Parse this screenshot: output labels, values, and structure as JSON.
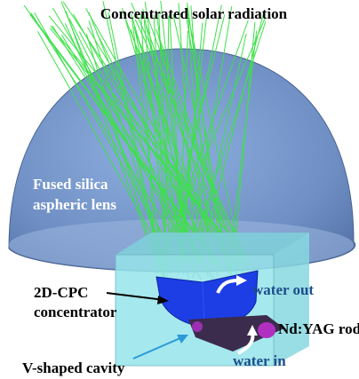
{
  "header": {
    "title": "Concentrated solar radiation"
  },
  "labels": {
    "lens": {
      "lines": [
        "Fused silica",
        "aspheric lens"
      ]
    },
    "water_out": "water out",
    "concentrator": {
      "lines": [
        "2D-CPC",
        "concentrator"
      ]
    },
    "rod": "Nd:YAG rod",
    "cavity": "V-shaped cavity",
    "water_in": "water in"
  }
}
